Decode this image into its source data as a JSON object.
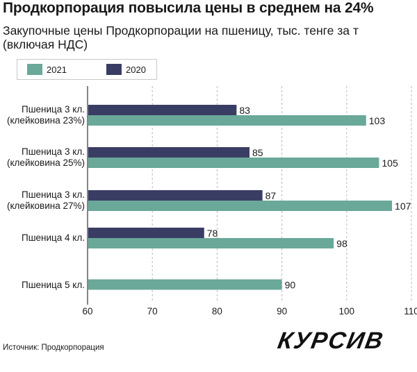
{
  "header": {
    "title": "Продкорпорация повысила цены в среднем на 24%",
    "subtitle": "Закупочные цены Продкорпорации на пшеницу, тыс. тенге за т (включая НДС)"
  },
  "footer": {
    "source": "Источник: Продкорпорация",
    "logo": "КУРСИВ"
  },
  "chart_data": {
    "type": "bar",
    "orientation": "horizontal",
    "categories": [
      [
        "Пшеница 3 кл.",
        "(клейковина 23%)"
      ],
      [
        "Пшеница 3 кл.",
        "(клейковина 25%)"
      ],
      [
        "Пшеница 3 кл.",
        "(клейковина 27%)"
      ],
      [
        "Пшеница 4 кл."
      ],
      [
        "Пшеница 5 кл."
      ]
    ],
    "series": [
      {
        "name": "2020",
        "color": "#3a3d63",
        "values": [
          83,
          85,
          87,
          78,
          null
        ]
      },
      {
        "name": "2021",
        "color": "#6aa899",
        "values": [
          103,
          105,
          107,
          98,
          90
        ]
      }
    ],
    "legend_order": [
      "2021",
      "2020"
    ],
    "legend_placement": "top-left",
    "xlim": [
      60,
      110
    ],
    "xticks": [
      60,
      70,
      80,
      90,
      100,
      110
    ],
    "grid": "vertical-dashed"
  }
}
